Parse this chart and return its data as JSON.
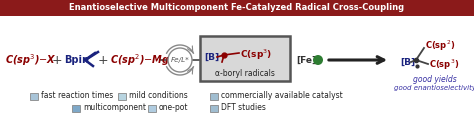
{
  "title": "Enantioselective Multicomponent Fe-Catalyzed Radical Cross-Coupling",
  "title_bg": "#8B1A1A",
  "title_color": "#FFFFFF",
  "background_color": "#FFFFFF",
  "legend_items_row1": [
    {
      "color": "#A8C4D8",
      "label": "fast reaction times"
    },
    {
      "color": "#B8D4E0",
      "label": "mild conditions"
    },
    {
      "color": "#A0BDD0",
      "label": "commercially available catalyst"
    }
  ],
  "legend_items_row2": [
    {
      "color": "#7EA8C8",
      "label": "multicomponent"
    },
    {
      "color": "#B0CCE0",
      "label": "one-pot"
    },
    {
      "color": "#A0BDD0",
      "label": "DFT studies"
    }
  ],
  "box_bg": "#D8D8D8",
  "box_border": "#555555",
  "dark_red": "#8B0000",
  "blue_color": "#1A237E",
  "green_color": "#2E7D32",
  "purple_color": "#3730A3",
  "fe_circle_color": "#2E7D32",
  "arrow_color": "#333333",
  "gray_text": "#555555"
}
